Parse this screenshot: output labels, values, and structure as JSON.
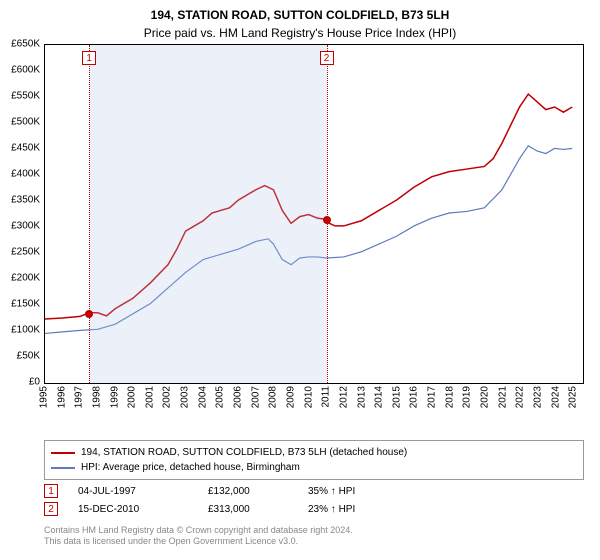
{
  "title": "194, STATION ROAD, SUTTON COLDFIELD, B73 5LH",
  "subtitle": "Price paid vs. HM Land Registry's House Price Index (HPI)",
  "chart": {
    "type": "line",
    "background_color": "#ffffff",
    "plot_border_color": "#000000",
    "shade_color": "rgba(180,200,230,0.25)",
    "xlim": [
      1995,
      2025.5
    ],
    "ylim": [
      0,
      650000
    ],
    "ytick_step": 50000,
    "ytick_prefix": "£",
    "ytick_suffix": "K",
    "ytick_divisor": 1000,
    "xtick_years": [
      1995,
      1996,
      1997,
      1998,
      1999,
      2000,
      2001,
      2002,
      2003,
      2004,
      2005,
      2006,
      2007,
      2008,
      2009,
      2010,
      2011,
      2012,
      2013,
      2014,
      2015,
      2016,
      2017,
      2018,
      2019,
      2020,
      2021,
      2022,
      2023,
      2024,
      2025
    ],
    "y_label_fontsize": 10,
    "x_label_fontsize": 10,
    "x_label_rotation": -90,
    "series": [
      {
        "name": "price_paid",
        "color": "#c00000",
        "width": 1.5,
        "data": [
          [
            1995,
            120000
          ],
          [
            1996,
            122000
          ],
          [
            1997,
            125000
          ],
          [
            1997.5,
            132000
          ],
          [
            1998,
            132000
          ],
          [
            1998.5,
            126000
          ],
          [
            1999,
            140000
          ],
          [
            2000,
            160000
          ],
          [
            2001,
            190000
          ],
          [
            2002,
            225000
          ],
          [
            2002.5,
            255000
          ],
          [
            2003,
            290000
          ],
          [
            2003.5,
            300000
          ],
          [
            2004,
            310000
          ],
          [
            2004.5,
            325000
          ],
          [
            2005,
            330000
          ],
          [
            2005.5,
            335000
          ],
          [
            2006,
            350000
          ],
          [
            2006.5,
            360000
          ],
          [
            2007,
            370000
          ],
          [
            2007.5,
            378000
          ],
          [
            2008,
            370000
          ],
          [
            2008.5,
            330000
          ],
          [
            2009,
            305000
          ],
          [
            2009.5,
            318000
          ],
          [
            2010,
            322000
          ],
          [
            2010.5,
            315000
          ],
          [
            2010.96,
            313000
          ],
          [
            2011,
            308000
          ],
          [
            2011.5,
            300000
          ],
          [
            2012,
            300000
          ],
          [
            2013,
            310000
          ],
          [
            2014,
            330000
          ],
          [
            2015,
            350000
          ],
          [
            2016,
            375000
          ],
          [
            2017,
            395000
          ],
          [
            2018,
            405000
          ],
          [
            2019,
            410000
          ],
          [
            2020,
            415000
          ],
          [
            2020.5,
            430000
          ],
          [
            2021,
            460000
          ],
          [
            2021.5,
            495000
          ],
          [
            2022,
            530000
          ],
          [
            2022.5,
            555000
          ],
          [
            2023,
            540000
          ],
          [
            2023.5,
            525000
          ],
          [
            2024,
            530000
          ],
          [
            2024.5,
            520000
          ],
          [
            2025,
            530000
          ]
        ]
      },
      {
        "name": "hpi",
        "color": "#5b7bbf",
        "width": 1.2,
        "data": [
          [
            1995,
            92000
          ],
          [
            1996,
            95000
          ],
          [
            1997,
            98000
          ],
          [
            1998,
            100000
          ],
          [
            1999,
            110000
          ],
          [
            2000,
            130000
          ],
          [
            2001,
            150000
          ],
          [
            2002,
            180000
          ],
          [
            2003,
            210000
          ],
          [
            2004,
            235000
          ],
          [
            2005,
            245000
          ],
          [
            2006,
            255000
          ],
          [
            2007,
            270000
          ],
          [
            2007.7,
            275000
          ],
          [
            2008,
            265000
          ],
          [
            2008.5,
            235000
          ],
          [
            2009,
            225000
          ],
          [
            2009.5,
            238000
          ],
          [
            2010,
            240000
          ],
          [
            2010.5,
            240000
          ],
          [
            2011,
            238000
          ],
          [
            2012,
            240000
          ],
          [
            2013,
            250000
          ],
          [
            2014,
            265000
          ],
          [
            2015,
            280000
          ],
          [
            2016,
            300000
          ],
          [
            2017,
            315000
          ],
          [
            2018,
            325000
          ],
          [
            2019,
            328000
          ],
          [
            2020,
            335000
          ],
          [
            2021,
            370000
          ],
          [
            2021.5,
            400000
          ],
          [
            2022,
            430000
          ],
          [
            2022.5,
            455000
          ],
          [
            2023,
            445000
          ],
          [
            2023.5,
            440000
          ],
          [
            2024,
            450000
          ],
          [
            2024.5,
            448000
          ],
          [
            2025,
            450000
          ]
        ]
      }
    ],
    "shaded_ranges": [
      [
        1997.5,
        2010.96
      ]
    ],
    "markers": [
      {
        "label": "1",
        "year": 1997.5,
        "value": 132000
      },
      {
        "label": "2",
        "year": 2010.96,
        "value": 313000
      }
    ],
    "marker_box_color": "#c00000",
    "sale_dot_color": "#c00000"
  },
  "legend": {
    "border_color": "#999999",
    "items": [
      {
        "color": "#c00000",
        "label": "194, STATION ROAD, SUTTON COLDFIELD, B73 5LH (detached house)"
      },
      {
        "color": "#5b7bbf",
        "label": "HPI: Average price, detached house, Birmingham"
      }
    ]
  },
  "sales": [
    {
      "marker": "1",
      "date": "04-JUL-1997",
      "price": "£132,000",
      "delta": "35% ↑ HPI"
    },
    {
      "marker": "2",
      "date": "15-DEC-2010",
      "price": "£313,000",
      "delta": "23% ↑ HPI"
    }
  ],
  "footnote": "Contains HM Land Registry data © Crown copyright and database right 2024.\nThis data is licensed under the Open Government Licence v3.0."
}
